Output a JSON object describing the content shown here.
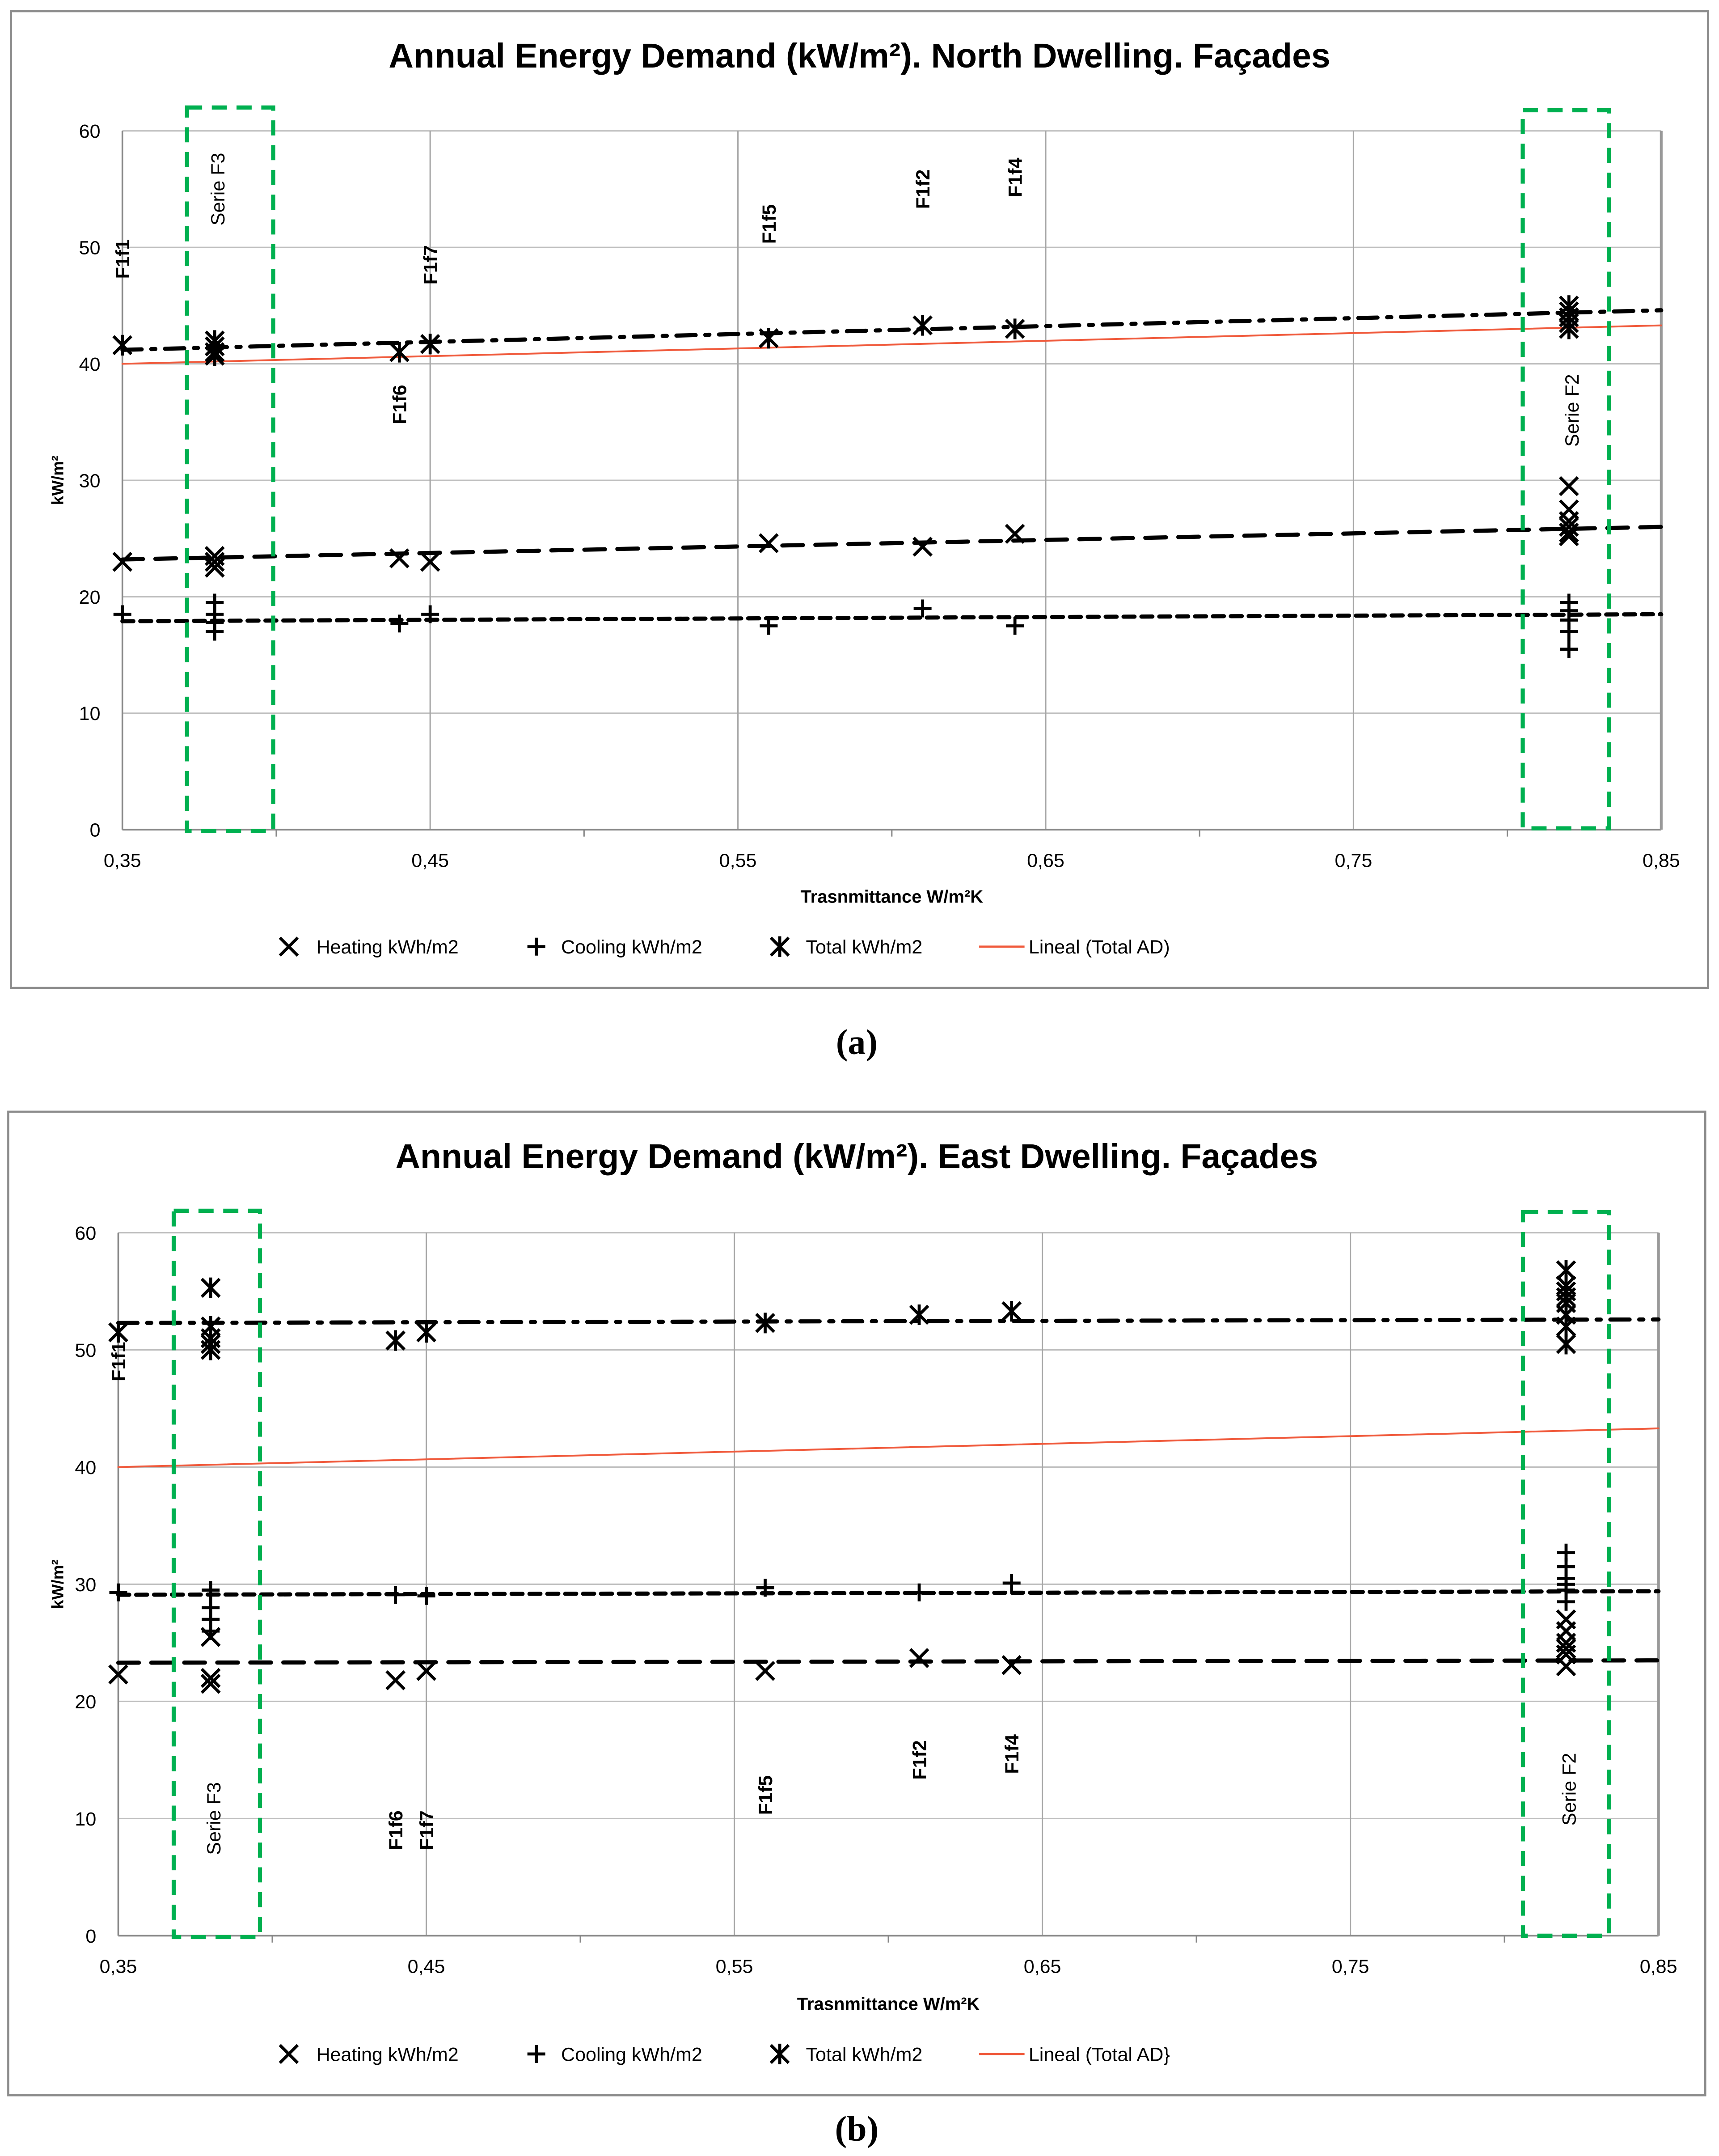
{
  "colors": {
    "marker": "#000000",
    "trend_lineal": "#f05a3c",
    "highlight_box": "#00b050",
    "grid": "#bfbfbf",
    "frame": "#8c8c8c"
  },
  "chart_data": [
    {
      "type": "scatter",
      "caption": "(a)",
      "title": "Annual Energy Demand (kW/m²). North Dwelling. Façades",
      "xlabel": "Trasnmittance W/m²K",
      "ylabel": "kW/m²",
      "xlim": [
        0.35,
        0.85
      ],
      "ylim": [
        0,
        60
      ],
      "xticks": [
        "0,35",
        "0,45",
        "0,55",
        "0,65",
        "0,75",
        "0,85"
      ],
      "yticks": [
        "0",
        "10",
        "20",
        "30",
        "40",
        "50",
        "60"
      ],
      "grid": true,
      "legend_position": "bottom",
      "legend": [
        "Heating kWh/m2",
        "Cooling kWh/m2",
        "Total kWh/m2",
        "Lineal (Total AD)"
      ],
      "series": [
        {
          "name": "Heating kWh/m2",
          "marker": "x",
          "points": [
            [
              0.35,
              23
            ],
            [
              0.38,
              23.5
            ],
            [
              0.38,
              23
            ],
            [
              0.38,
              22.5
            ],
            [
              0.44,
              23.3
            ],
            [
              0.45,
              23
            ],
            [
              0.56,
              24.6
            ],
            [
              0.61,
              24.3
            ],
            [
              0.64,
              25.4
            ],
            [
              0.82,
              29.5
            ],
            [
              0.82,
              27.5
            ],
            [
              0.82,
              26.5
            ],
            [
              0.82,
              26
            ],
            [
              0.82,
              25.5
            ],
            [
              0.82,
              25.2
            ]
          ],
          "trend": [
            [
              0.35,
              23.2
            ],
            [
              0.85,
              26
            ]
          ],
          "trend_style": "dash"
        },
        {
          "name": "Cooling kWh/m2",
          "marker": "plus",
          "points": [
            [
              0.35,
              18.5
            ],
            [
              0.38,
              19.5
            ],
            [
              0.38,
              18.5
            ],
            [
              0.38,
              17.8
            ],
            [
              0.38,
              17
            ],
            [
              0.44,
              17.7
            ],
            [
              0.45,
              18.5
            ],
            [
              0.56,
              17.5
            ],
            [
              0.61,
              19
            ],
            [
              0.64,
              17.5
            ],
            [
              0.82,
              19.5
            ],
            [
              0.82,
              18.8
            ],
            [
              0.82,
              18
            ],
            [
              0.82,
              17
            ],
            [
              0.82,
              15.5
            ]
          ],
          "trend": [
            [
              0.35,
              17.9
            ],
            [
              0.85,
              18.5
            ]
          ],
          "trend_style": "shortdash"
        },
        {
          "name": "Total kWh/m2",
          "marker": "star",
          "points": [
            [
              0.35,
              41.6
            ],
            [
              0.38,
              42
            ],
            [
              0.38,
              41.5
            ],
            [
              0.38,
              41
            ],
            [
              0.38,
              40.7
            ],
            [
              0.44,
              41
            ],
            [
              0.45,
              41.7
            ],
            [
              0.56,
              42.2
            ],
            [
              0.61,
              43.3
            ],
            [
              0.64,
              43
            ],
            [
              0.82,
              45
            ],
            [
              0.82,
              44.5
            ],
            [
              0.82,
              44
            ],
            [
              0.82,
              43.5
            ],
            [
              0.82,
              43
            ]
          ],
          "trend": [
            [
              0.35,
              41.2
            ],
            [
              0.85,
              44.6
            ]
          ],
          "trend_style": "dashdot"
        },
        {
          "name": "Lineal (Total AD)",
          "marker": "none",
          "trend": [
            [
              0.35,
              40
            ],
            [
              0.85,
              43.3
            ]
          ],
          "trend_style": "solid"
        }
      ],
      "annotations": [
        {
          "text": "F1f1",
          "x": 0.35,
          "y": 49
        },
        {
          "text": "Serie F3",
          "x": 0.38,
          "y": 55
        },
        {
          "text": "F1f6",
          "x": 0.44,
          "y": 36.5
        },
        {
          "text": "F1f7",
          "x": 0.45,
          "y": 48.5
        },
        {
          "text": "F1f5",
          "x": 0.56,
          "y": 52
        },
        {
          "text": "F1f2",
          "x": 0.61,
          "y": 55
        },
        {
          "text": "F1f4",
          "x": 0.64,
          "y": 56
        },
        {
          "text": "Serie F2",
          "x": 0.82,
          "y": 36
        }
      ],
      "highlight_ranges": [
        [
          0.371,
          0.399
        ],
        [
          0.805,
          0.833
        ]
      ]
    },
    {
      "type": "scatter",
      "caption": "(b)",
      "title": "Annual Energy Demand (kW/m²). East Dwelling. Façades",
      "xlabel": "Trasnmittance W/m²K",
      "ylabel": "kW/m²",
      "xlim": [
        0.35,
        0.85
      ],
      "ylim": [
        0,
        60
      ],
      "xticks": [
        "0,35",
        "0,45",
        "0,55",
        "0,65",
        "0,75",
        "0,85"
      ],
      "yticks": [
        "0",
        "10",
        "20",
        "30",
        "40",
        "50",
        "60"
      ],
      "grid": true,
      "legend_position": "bottom",
      "legend": [
        "Heating kWh/m2",
        "Cooling kWh/m2",
        "Total kWh/m2",
        "Lineal (Total AD}"
      ],
      "series": [
        {
          "name": "Heating kWh/m2",
          "marker": "x",
          "points": [
            [
              0.35,
              22.3
            ],
            [
              0.38,
              25.5
            ],
            [
              0.38,
              22
            ],
            [
              0.38,
              21.5
            ],
            [
              0.44,
              21.8
            ],
            [
              0.45,
              22.6
            ],
            [
              0.56,
              22.6
            ],
            [
              0.61,
              23.7
            ],
            [
              0.64,
              23.1
            ],
            [
              0.82,
              27
            ],
            [
              0.82,
              26
            ],
            [
              0.82,
              25
            ],
            [
              0.82,
              24.5
            ],
            [
              0.82,
              24
            ],
            [
              0.82,
              23
            ]
          ],
          "trend": [
            [
              0.35,
              23.3
            ],
            [
              0.85,
              23.5
            ]
          ],
          "trend_style": "dash"
        },
        {
          "name": "Cooling kWh/m2",
          "marker": "plus",
          "points": [
            [
              0.35,
              29.3
            ],
            [
              0.38,
              29.5
            ],
            [
              0.38,
              28
            ],
            [
              0.38,
              27
            ],
            [
              0.38,
              26
            ],
            [
              0.44,
              29.1
            ],
            [
              0.45,
              29
            ],
            [
              0.56,
              29.7
            ],
            [
              0.61,
              29.3
            ],
            [
              0.64,
              30.1
            ],
            [
              0.82,
              32.7
            ],
            [
              0.82,
              31.5
            ],
            [
              0.82,
              30.5
            ],
            [
              0.82,
              30
            ],
            [
              0.82,
              29.5
            ],
            [
              0.82,
              28.5
            ]
          ],
          "trend": [
            [
              0.35,
              29.1
            ],
            [
              0.85,
              29.4
            ]
          ],
          "trend_style": "shortdash"
        },
        {
          "name": "Total kWh/m2",
          "marker": "star",
          "points": [
            [
              0.35,
              51.5
            ],
            [
              0.38,
              55.3
            ],
            [
              0.38,
              52
            ],
            [
              0.38,
              51
            ],
            [
              0.38,
              50.5
            ],
            [
              0.38,
              50
            ],
            [
              0.44,
              50.8
            ],
            [
              0.45,
              51.5
            ],
            [
              0.56,
              52.3
            ],
            [
              0.61,
              53
            ],
            [
              0.64,
              53.3
            ],
            [
              0.82,
              56.8
            ],
            [
              0.82,
              55.5
            ],
            [
              0.82,
              55
            ],
            [
              0.82,
              54.5
            ],
            [
              0.82,
              54
            ],
            [
              0.82,
              53
            ],
            [
              0.82,
              52
            ],
            [
              0.82,
              50.5
            ]
          ],
          "trend": [
            [
              0.35,
              52.3
            ],
            [
              0.85,
              52.6
            ]
          ],
          "trend_style": "dashdot"
        },
        {
          "name": "Lineal (Total AD}",
          "marker": "none",
          "trend": [
            [
              0.35,
              40
            ],
            [
              0.85,
              43.3
            ]
          ],
          "trend_style": "solid"
        }
      ],
      "annotations": [
        {
          "text": "F1f1",
          "x": 0.35,
          "y": 49
        },
        {
          "text": "Serie F3",
          "x": 0.38,
          "y": 10
        },
        {
          "text": "F1f6",
          "x": 0.44,
          "y": 9
        },
        {
          "text": "F1f7",
          "x": 0.45,
          "y": 9
        },
        {
          "text": "F1f5",
          "x": 0.56,
          "y": 12
        },
        {
          "text": "F1f2",
          "x": 0.61,
          "y": 15
        },
        {
          "text": "F1f4",
          "x": 0.64,
          "y": 15.5
        },
        {
          "text": "Serie F2",
          "x": 0.82,
          "y": 12.5
        }
      ],
      "highlight_ranges": [
        [
          0.368,
          0.396
        ],
        [
          0.806,
          0.834
        ]
      ]
    }
  ]
}
